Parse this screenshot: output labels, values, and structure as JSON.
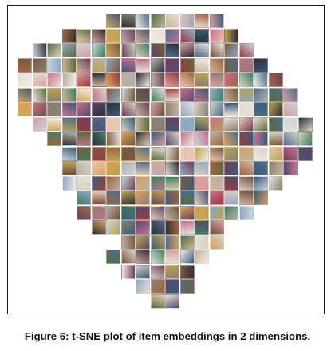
{
  "figure": {
    "caption": "Figure 6: t-SNE plot of item embeddings in 2 dimensions.",
    "description_kind": "mosaic of item thumbnail images arranged by t-SNE embedding"
  },
  "palette": {
    "frame": "#1a1a1a",
    "caption_text": "#111111",
    "tiles": [
      "#7a5a3c",
      "#c9b49a",
      "#3d5a7a",
      "#8fa8c4",
      "#a3643f",
      "#d8cfc0",
      "#5b6b3a",
      "#b9a24f",
      "#6e3f5c",
      "#c46f8e",
      "#2f2f36",
      "#e6dfd6",
      "#8a7f72",
      "#d6a25c",
      "#4a6e8c",
      "#9c3b3b",
      "#e8c6b2",
      "#3f7f5f",
      "#b8b0a6",
      "#705040",
      "#c9d3dc",
      "#f0ebe4",
      "#564a6e",
      "#d99f9f"
    ]
  }
}
